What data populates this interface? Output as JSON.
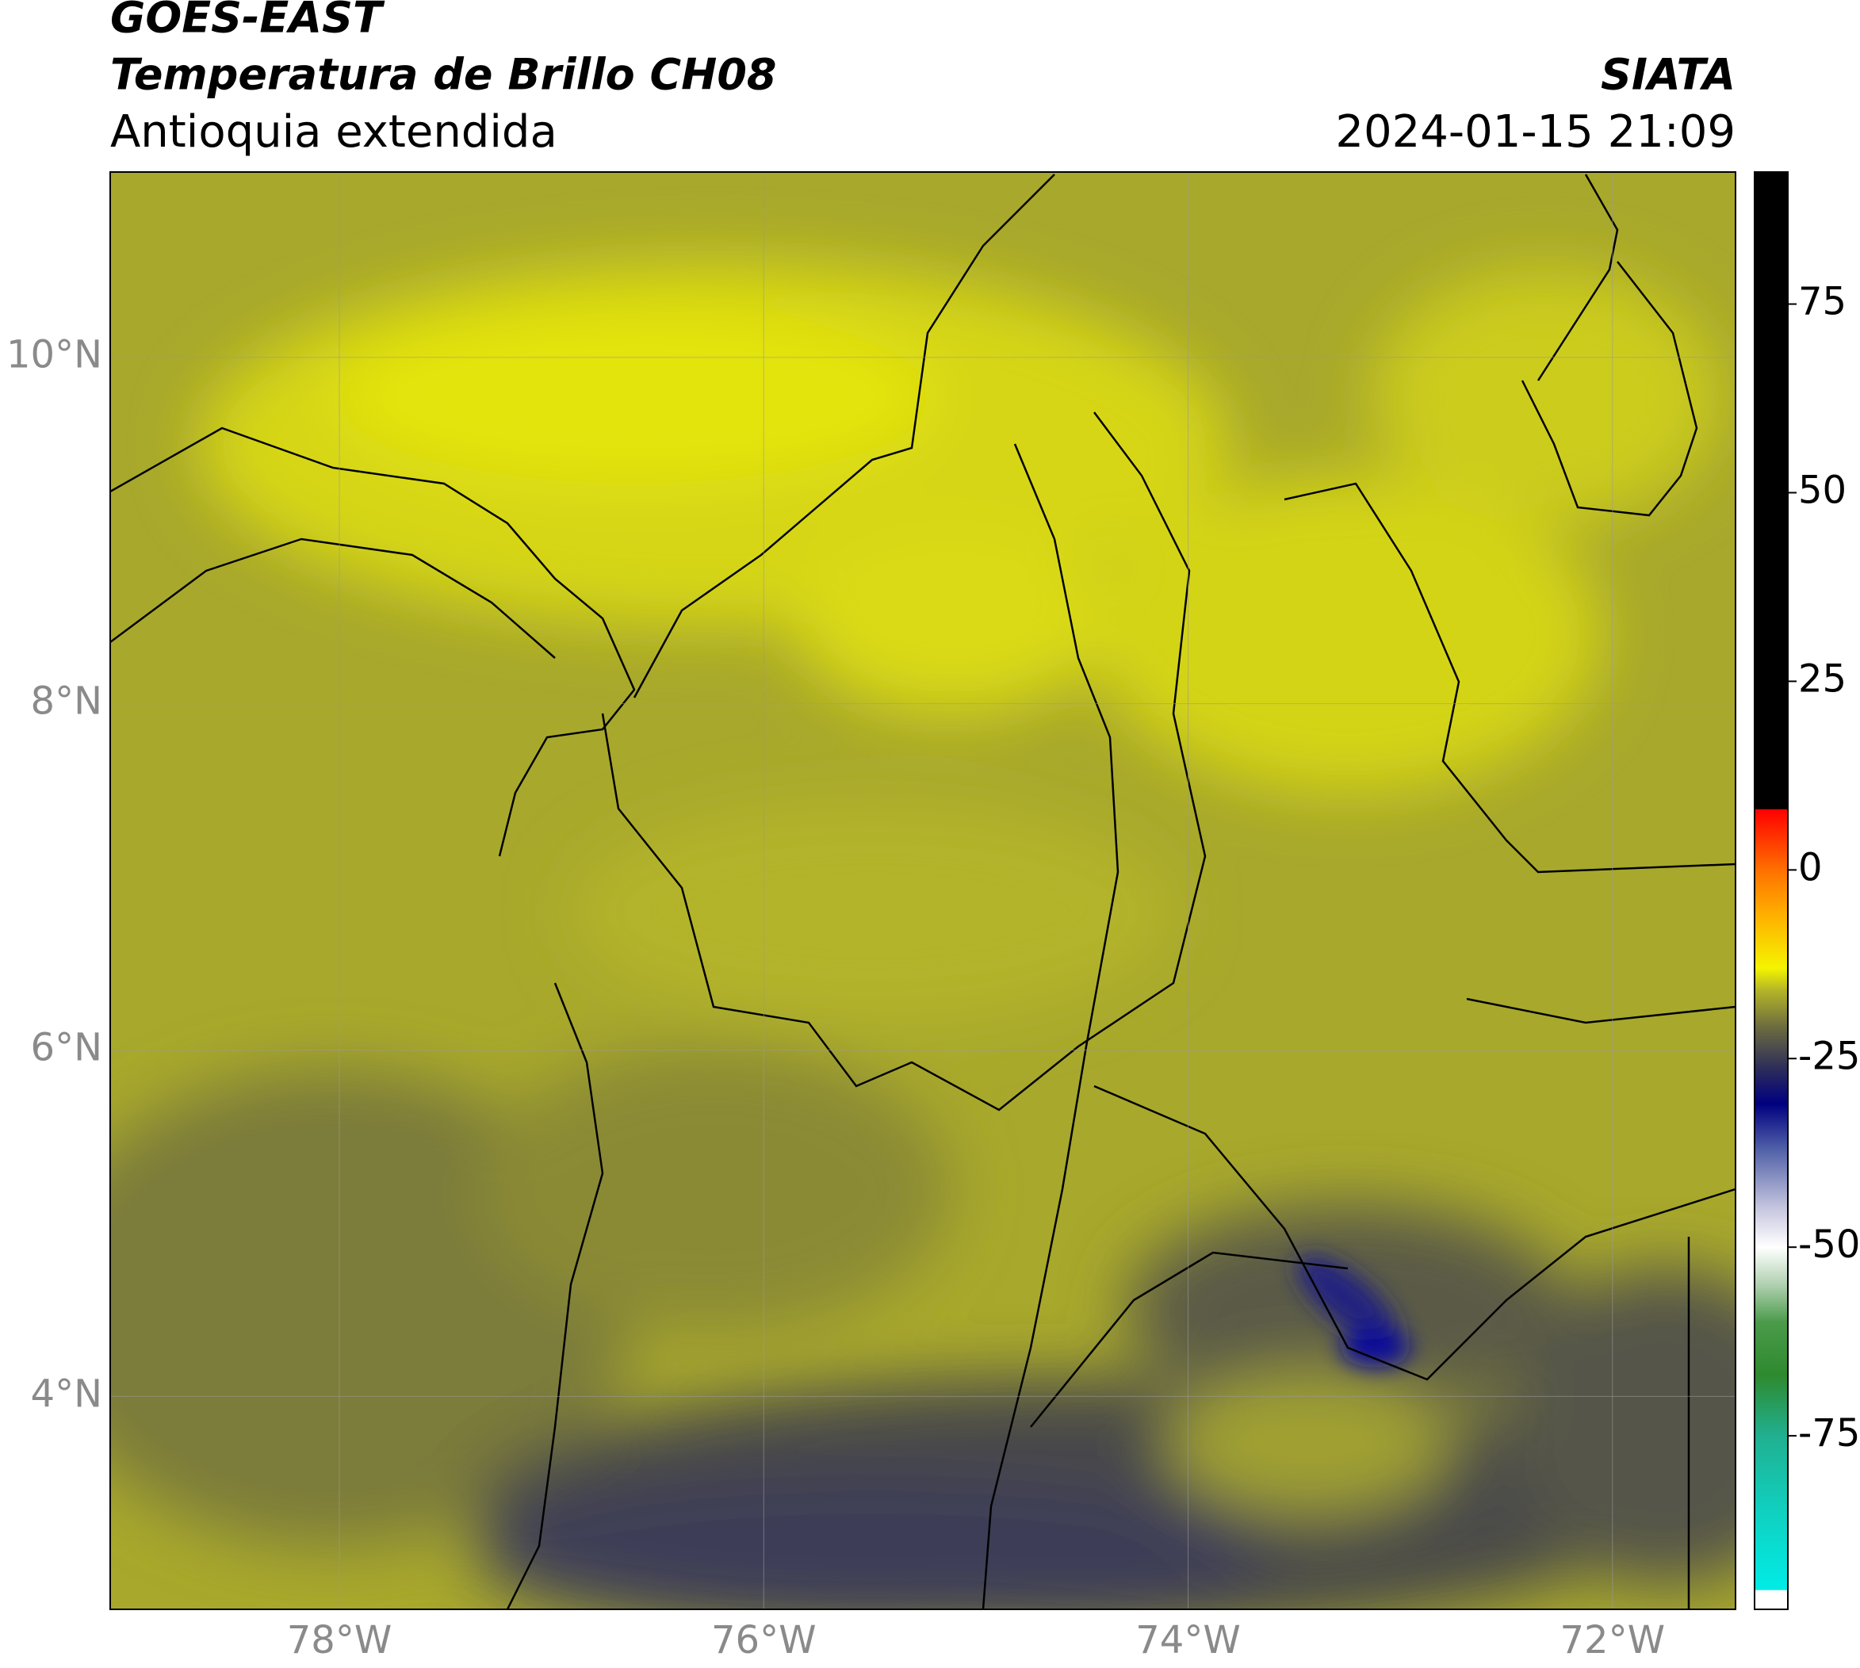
{
  "header": {
    "title": "GOES-EAST",
    "subtitle": "Temperatura de Brillo CH08",
    "region": "Antioquia extendida",
    "source": "SIATA",
    "timestamp": "2024-01-15 21:09"
  },
  "map": {
    "xlim": [
      -79.08,
      -71.42
    ],
    "ylim": [
      2.77,
      11.07
    ],
    "xticks": [
      {
        "value": -78,
        "label": "78°W"
      },
      {
        "value": -76,
        "label": "76°W"
      },
      {
        "value": -74,
        "label": "74°W"
      },
      {
        "value": -72,
        "label": "72°W"
      }
    ],
    "yticks": [
      {
        "value": 4,
        "label": "4°N"
      },
      {
        "value": 6,
        "label": "6°N"
      },
      {
        "value": 8,
        "label": "8°N"
      },
      {
        "value": 10,
        "label": "10°N"
      }
    ],
    "grid": true
  },
  "colorbar": {
    "range": [
      -98,
      92.5
    ],
    "ticks": [
      -75,
      -50,
      -25,
      0,
      25,
      50,
      75
    ],
    "stops": [
      {
        "value": -98,
        "color": "#ffffff"
      },
      {
        "value": -95.5,
        "color": "#ffffff"
      },
      {
        "value": -95.4,
        "color": "#00ece6"
      },
      {
        "value": -85,
        "color": "#10d0c0"
      },
      {
        "value": -75,
        "color": "#20b090"
      },
      {
        "value": -67,
        "color": "#2e8a2e"
      },
      {
        "value": -60,
        "color": "#4a9a4a"
      },
      {
        "value": -55,
        "color": "#b0d0b0"
      },
      {
        "value": -50,
        "color": "#ffffff"
      },
      {
        "value": -45,
        "color": "#c8c8e0"
      },
      {
        "value": -37,
        "color": "#5060a8"
      },
      {
        "value": -31,
        "color": "#000080"
      },
      {
        "value": -26,
        "color": "#303058"
      },
      {
        "value": -21,
        "color": "#6a6a40"
      },
      {
        "value": -16,
        "color": "#b4b428"
      },
      {
        "value": -13,
        "color": "#f4f400"
      },
      {
        "value": -6,
        "color": "#ffb000"
      },
      {
        "value": 0,
        "color": "#ff7000"
      },
      {
        "value": 8,
        "color": "#ff0000"
      },
      {
        "value": 8.1,
        "color": "#000000"
      },
      {
        "value": 92.5,
        "color": "#000000"
      }
    ]
  }
}
